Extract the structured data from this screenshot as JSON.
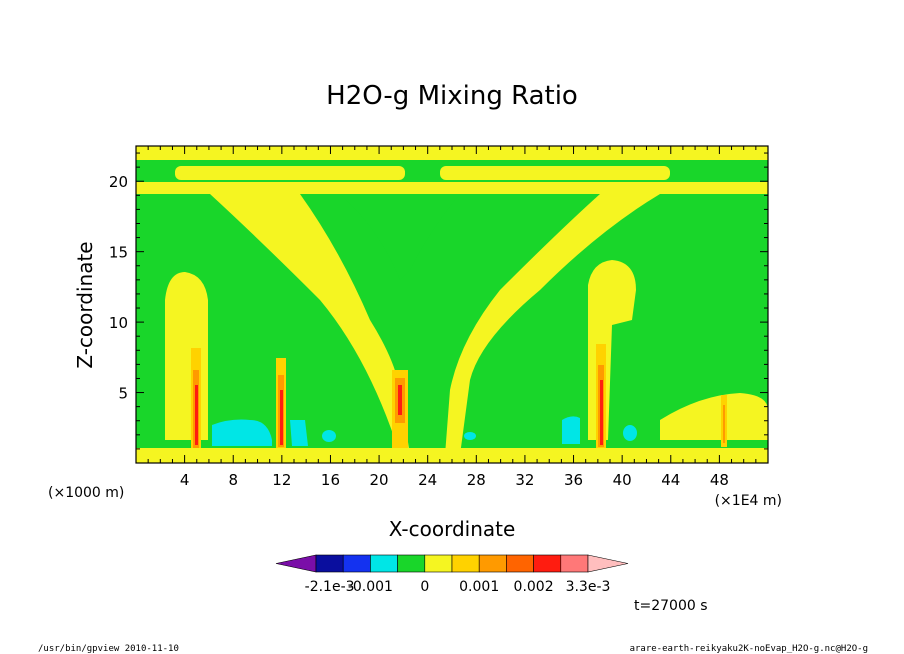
{
  "chart_data": {
    "type": "heatmap",
    "title": "H2O-g Mixing Ratio",
    "xlabel": "X-coordinate",
    "ylabel": "Z-coordinate",
    "x_unit_left": "(×1000 m)",
    "x_unit_right": "(×1E4 m)",
    "xlim": [
      0,
      52
    ],
    "ylim": [
      0,
      22.5
    ],
    "x_ticks": [
      4,
      8,
      12,
      16,
      20,
      24,
      28,
      32,
      36,
      40,
      44,
      48
    ],
    "y_ticks": [
      5,
      10,
      15,
      20
    ],
    "colorbar": {
      "colors": [
        "#7a0ea8",
        "#0a0e9e",
        "#1432f0",
        "#00e6e6",
        "#19d62a",
        "#f5f521",
        "#ffd200",
        "#ff9a00",
        "#ff6400",
        "#ff1c10",
        "#ff7878",
        "#ffbebe"
      ],
      "tick_labels": [
        "-2.1e-3",
        "-0.001",
        "0",
        "0.001",
        "0.002",
        "3.3e-3"
      ],
      "tick_index": [
        1.5,
        3,
        5,
        7,
        9,
        11
      ]
    },
    "time_label": "t=27000 s",
    "footer_left": "/usr/bin/gpview   2010-11-10",
    "footer_right": "arare-earth-reikyaku2K-noEvap_H2O-g.nc@H2O-g"
  }
}
